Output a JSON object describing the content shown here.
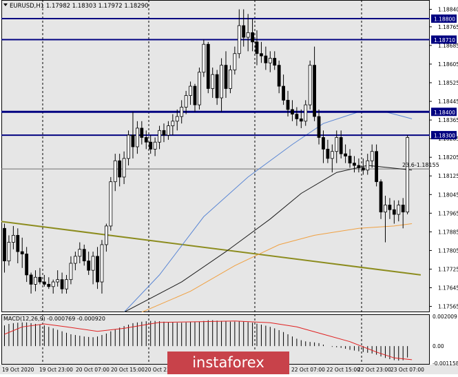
{
  "window_title": "EURUSD,H1",
  "ohlc_readout": "1.17982 1.18303 1.17972 1.18290",
  "fib_label": "23.6-1.18155",
  "macd_label": "MACD(12,26,9) -0.000769 -0.000920",
  "watermark": "instaforex",
  "colors": {
    "background": "#e6e6e6",
    "bull_candle": "#ffffff",
    "bear_candle": "#000000",
    "level_line": "#000080",
    "ma_blue": "#5b87d4",
    "ma_black": "#1a1a1a",
    "ma_orange": "#f0a040",
    "trend_line": "#8c8c1e",
    "macd_signal": "#e02020",
    "watermark_bg": "#c8424a"
  },
  "price_axis_labels": [
    "1.18840",
    "1.18765",
    "1.18685",
    "1.18605",
    "1.18525",
    "1.18445",
    "1.18365",
    "1.18285",
    "1.18205",
    "1.18125",
    "1.18045",
    "1.17965",
    "1.17885",
    "1.17805",
    "1.17725",
    "1.17645",
    "1.17565"
  ],
  "macd_axis_labels": [
    "0.002009",
    "0.00",
    "-0.001158"
  ],
  "time_axis_labels": [
    "19 Oct 2020",
    "19 Oct 23:00",
    "20 Oct 07:00",
    "20 Oct 15:00",
    "20 Oct 23:00",
    "22 Oct 07:00",
    "22 Oct 15:00",
    "22 Oct 23:00",
    "23 Oct 07:00"
  ],
  "chart_data": {
    "type": "candlestick",
    "title": "EURUSD,H1",
    "symbol": "EURUSD",
    "timeframe": "H1",
    "ylim": [
      1.1754,
      1.1888
    ],
    "grid": false,
    "horizontal_levels": [
      {
        "price": 1.188,
        "label": "1.18800"
      },
      {
        "price": 1.1871,
        "label": "1.18710"
      },
      {
        "price": 1.184,
        "label": "1.18400"
      },
      {
        "price": 1.183,
        "label": "1.18300"
      }
    ],
    "fib_level": {
      "price": 1.18155,
      "label": "23.6-1.18155"
    },
    "current_price": 1.1829,
    "candles": [
      [
        1.179,
        1.1792,
        1.1771,
        1.1776
      ],
      [
        1.1776,
        1.1787,
        1.1774,
        1.1784
      ],
      [
        1.1784,
        1.1791,
        1.1781,
        1.1787
      ],
      [
        1.1787,
        1.179,
        1.1775,
        1.178
      ],
      [
        1.178,
        1.1786,
        1.1773,
        1.1779
      ],
      [
        1.1779,
        1.1782,
        1.1767,
        1.177
      ],
      [
        1.177,
        1.1771,
        1.1762,
        1.1766
      ],
      [
        1.1766,
        1.1772,
        1.1763,
        1.1769
      ],
      [
        1.1769,
        1.1773,
        1.1766,
        1.1767
      ],
      [
        1.1767,
        1.177,
        1.1765,
        1.1766
      ],
      [
        1.1766,
        1.1769,
        1.1764,
        1.1765
      ],
      [
        1.1765,
        1.1768,
        1.1762,
        1.1767
      ],
      [
        1.1767,
        1.1772,
        1.1765,
        1.1768
      ],
      [
        1.1768,
        1.1771,
        1.1762,
        1.1764
      ],
      [
        1.1764,
        1.177,
        1.1762,
        1.1768
      ],
      [
        1.1768,
        1.1778,
        1.1766,
        1.1775
      ],
      [
        1.1775,
        1.178,
        1.1772,
        1.1778
      ],
      [
        1.1778,
        1.1784,
        1.1775,
        1.1781
      ],
      [
        1.1781,
        1.1783,
        1.1774,
        1.1776
      ],
      [
        1.1776,
        1.178,
        1.177,
        1.1772
      ],
      [
        1.1772,
        1.178,
        1.1766,
        1.1778
      ],
      [
        1.1778,
        1.1782,
        1.1764,
        1.1767
      ],
      [
        1.1767,
        1.1785,
        1.1762,
        1.1783
      ],
      [
        1.1783,
        1.1792,
        1.178,
        1.1791
      ],
      [
        1.1791,
        1.1812,
        1.1789,
        1.181
      ],
      [
        1.181,
        1.1822,
        1.1806,
        1.1819
      ],
      [
        1.1819,
        1.1822,
        1.1808,
        1.1812
      ],
      [
        1.1812,
        1.1823,
        1.1809,
        1.182
      ],
      [
        1.182,
        1.1832,
        1.1817,
        1.183
      ],
      [
        1.183,
        1.184,
        1.182,
        1.1825
      ],
      [
        1.1825,
        1.1836,
        1.1822,
        1.1833
      ],
      [
        1.1833,
        1.1836,
        1.1826,
        1.1829
      ],
      [
        1.1829,
        1.1832,
        1.1824,
        1.1827
      ],
      [
        1.1827,
        1.183,
        1.1822,
        1.1824
      ],
      [
        1.1824,
        1.1829,
        1.1821,
        1.1827
      ],
      [
        1.1827,
        1.1834,
        1.1824,
        1.1832
      ],
      [
        1.1832,
        1.1835,
        1.1827,
        1.183
      ],
      [
        1.183,
        1.1836,
        1.1828,
        1.1834
      ],
      [
        1.1834,
        1.1839,
        1.183,
        1.1836
      ],
      [
        1.1836,
        1.1841,
        1.1832,
        1.1838
      ],
      [
        1.1838,
        1.1845,
        1.1835,
        1.1842
      ],
      [
        1.1842,
        1.1849,
        1.1839,
        1.1847
      ],
      [
        1.1847,
        1.1853,
        1.1843,
        1.1851
      ],
      [
        1.1851,
        1.1852,
        1.184,
        1.1843
      ],
      [
        1.1843,
        1.1859,
        1.1841,
        1.1857
      ],
      [
        1.1857,
        1.1871,
        1.1855,
        1.1869
      ],
      [
        1.1869,
        1.187,
        1.1848,
        1.185
      ],
      [
        1.185,
        1.1859,
        1.1846,
        1.1856
      ],
      [
        1.1856,
        1.1858,
        1.1843,
        1.1846
      ],
      [
        1.1846,
        1.1863,
        1.184,
        1.186
      ],
      [
        1.186,
        1.1866,
        1.1846,
        1.185
      ],
      [
        1.185,
        1.186,
        1.1848,
        1.1858
      ],
      [
        1.1858,
        1.1868,
        1.1856,
        1.1865
      ],
      [
        1.1865,
        1.1884,
        1.1863,
        1.1877
      ],
      [
        1.1877,
        1.1884,
        1.1868,
        1.1872
      ],
      [
        1.1872,
        1.1882,
        1.1866,
        1.1874
      ],
      [
        1.1874,
        1.188,
        1.1866,
        1.187
      ],
      [
        1.187,
        1.1875,
        1.186,
        1.1865
      ],
      [
        1.1865,
        1.187,
        1.1861,
        1.1864
      ],
      [
        1.1864,
        1.1868,
        1.1858,
        1.1861
      ],
      [
        1.1861,
        1.1866,
        1.1857,
        1.1863
      ],
      [
        1.1863,
        1.1866,
        1.1858,
        1.186
      ],
      [
        1.186,
        1.1862,
        1.1848,
        1.1851
      ],
      [
        1.1851,
        1.1856,
        1.1843,
        1.1845
      ],
      [
        1.1845,
        1.1849,
        1.1838,
        1.1841
      ],
      [
        1.1841,
        1.1845,
        1.1836,
        1.1839
      ],
      [
        1.1839,
        1.1842,
        1.1834,
        1.1837
      ],
      [
        1.1837,
        1.1841,
        1.1833,
        1.1836
      ],
      [
        1.1836,
        1.1845,
        1.1834,
        1.1843
      ],
      [
        1.1843,
        1.1862,
        1.1841,
        1.186
      ],
      [
        1.186,
        1.1868,
        1.1836,
        1.1838
      ],
      [
        1.1838,
        1.1841,
        1.1826,
        1.1829
      ],
      [
        1.1829,
        1.1832,
        1.1818,
        1.1824
      ],
      [
        1.1824,
        1.1828,
        1.1818,
        1.182
      ],
      [
        1.182,
        1.1826,
        1.1814,
        1.1823
      ],
      [
        1.1823,
        1.1832,
        1.1818,
        1.1829
      ],
      [
        1.1829,
        1.1832,
        1.182,
        1.1822
      ],
      [
        1.1822,
        1.1826,
        1.1818,
        1.1821
      ],
      [
        1.1821,
        1.1824,
        1.1816,
        1.1818
      ],
      [
        1.1818,
        1.1821,
        1.1814,
        1.1817
      ],
      [
        1.1817,
        1.182,
        1.1814,
        1.1816
      ],
      [
        1.1816,
        1.182,
        1.1813,
        1.1815
      ],
      [
        1.1815,
        1.1822,
        1.1813,
        1.1819
      ],
      [
        1.1819,
        1.1826,
        1.1816,
        1.1823
      ],
      [
        1.1823,
        1.1826,
        1.1808,
        1.181
      ],
      [
        1.181,
        1.1811,
        1.1794,
        1.1797
      ],
      [
        1.1797,
        1.1804,
        1.1784,
        1.18
      ],
      [
        1.18,
        1.1803,
        1.1794,
        1.1798
      ],
      [
        1.1798,
        1.1802,
        1.1792,
        1.1796
      ],
      [
        1.1796,
        1.1802,
        1.1793,
        1.18
      ],
      [
        1.18,
        1.1803,
        1.179,
        1.1797
      ],
      [
        1.1797,
        1.183,
        1.1796,
        1.1829
      ]
    ],
    "moving_averages": [
      {
        "color": "#5b87d4",
        "values": [
          [
            27,
            1.1754
          ],
          [
            35,
            1.177
          ],
          [
            45,
            1.1795
          ],
          [
            55,
            1.1812
          ],
          [
            65,
            1.1826
          ],
          [
            72,
            1.1835
          ],
          [
            80,
            1.184
          ],
          [
            86,
            1.184
          ],
          [
            92,
            1.1837
          ]
        ]
      },
      {
        "color": "#1a1a1a",
        "values": [
          [
            27,
            1.1754
          ],
          [
            40,
            1.1767
          ],
          [
            50,
            1.178
          ],
          [
            60,
            1.1794
          ],
          [
            67,
            1.1805
          ],
          [
            75,
            1.1814
          ],
          [
            82,
            1.1817
          ],
          [
            92,
            1.1815
          ]
        ]
      },
      {
        "color": "#f0a040",
        "values": [
          [
            31,
            1.1754
          ],
          [
            42,
            1.1763
          ],
          [
            52,
            1.1774
          ],
          [
            62,
            1.1783
          ],
          [
            70,
            1.1787
          ],
          [
            80,
            1.179
          ],
          [
            88,
            1.1791
          ],
          [
            92,
            1.1792
          ]
        ]
      }
    ],
    "trendline": {
      "color": "#8c8c1e",
      "from": [
        -1,
        1.1793
      ],
      "to": [
        94,
        1.177
      ]
    },
    "macd": {
      "name": "MACD(12,26,9)",
      "value": -0.000769,
      "signal": -0.00092,
      "ylim": [
        -0.00125,
        0.00215
      ],
      "histogram": [
        0.0014,
        0.0015,
        0.00155,
        0.00158,
        0.0016,
        0.0016,
        0.00155,
        0.0015,
        0.00145,
        0.0014,
        0.0013,
        0.0012,
        0.0011,
        0.001,
        0.0009,
        0.0008,
        0.00075,
        0.0007,
        0.00065,
        0.00062,
        0.0006,
        0.00065,
        0.00075,
        0.00085,
        0.001,
        0.00112,
        0.00125,
        0.00135,
        0.00145,
        0.00155,
        0.0016,
        0.00165,
        0.00168,
        0.0017,
        0.0017,
        0.00168,
        0.00165,
        0.00162,
        0.0016,
        0.00158,
        0.00158,
        0.0016,
        0.00162,
        0.00163,
        0.00165,
        0.0017,
        0.00175,
        0.00175,
        0.00172,
        0.0017,
        0.00168,
        0.00165,
        0.00165,
        0.00168,
        0.00165,
        0.00162,
        0.00158,
        0.00152,
        0.00145,
        0.00138,
        0.0013,
        0.0012,
        0.00108,
        0.00095,
        0.0008,
        0.00065,
        0.0005,
        0.0004,
        0.00032,
        0.00028,
        0.00025,
        0.0002,
        0.0001,
        0.0,
        -5e-05,
        -8e-05,
        -0.00012,
        -0.00018,
        -0.00025,
        -0.0003,
        -0.00035,
        -0.0004,
        -0.00045,
        -0.0005,
        -0.00058,
        -0.0007,
        -0.0008,
        -0.00088,
        -0.00095,
        -0.00098,
        -0.00096,
        -0.00077
      ],
      "signal_line": [
        [
          0,
          0.0008
        ],
        [
          4,
          0.0013
        ],
        [
          9,
          0.0015
        ],
        [
          14,
          0.0013
        ],
        [
          21,
          0.001
        ],
        [
          27,
          0.0012
        ],
        [
          35,
          0.0016
        ],
        [
          44,
          0.00165
        ],
        [
          52,
          0.0017
        ],
        [
          60,
          0.00158
        ],
        [
          66,
          0.0013
        ],
        [
          72,
          0.0008
        ],
        [
          78,
          0.0003
        ],
        [
          84,
          -0.0004
        ],
        [
          88,
          -0.0008
        ],
        [
          92,
          -0.00092
        ]
      ]
    }
  }
}
